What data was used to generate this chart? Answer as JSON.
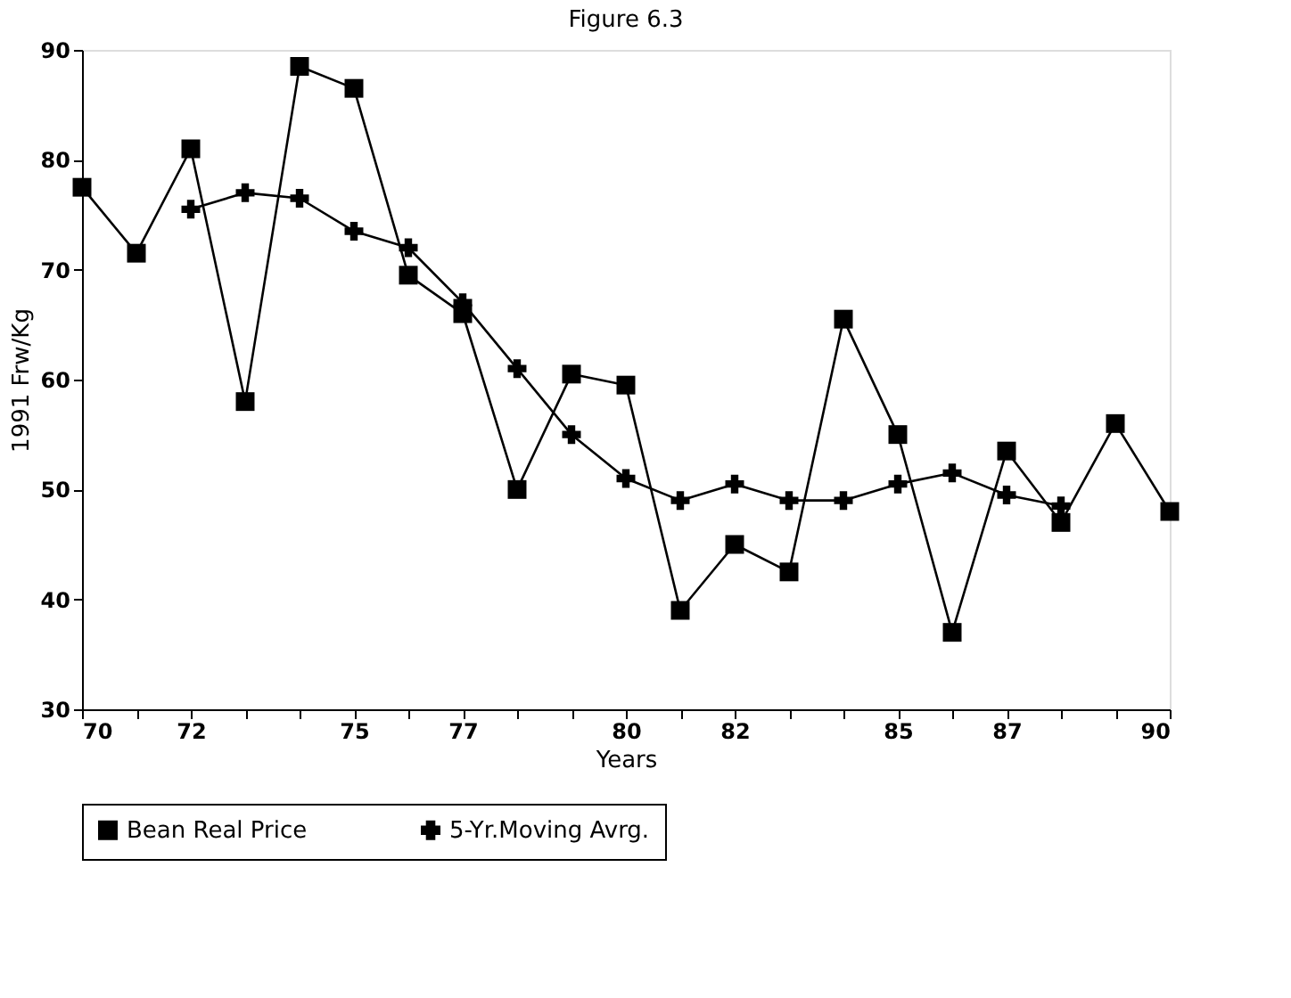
{
  "chart_data": {
    "type": "line",
    "title": "Figure 6.3",
    "xlabel": "Years",
    "ylabel": "1991 Frw/Kg",
    "x": [
      70,
      71,
      72,
      73,
      74,
      75,
      76,
      77,
      78,
      79,
      80,
      81,
      82,
      83,
      84,
      85,
      86,
      87,
      88,
      89,
      90
    ],
    "series": [
      {
        "name": "Bean Real Price",
        "color": "#000000",
        "marker": "square",
        "values": [
          77.5,
          71.5,
          81,
          58,
          88.5,
          86.5,
          69.5,
          66,
          50,
          60.5,
          59.5,
          39,
          45,
          42.5,
          65.5,
          55,
          37,
          53.5,
          47,
          56,
          48
        ]
      },
      {
        "name": "5-Yr.Moving Avrg.",
        "color": "#000000",
        "marker": "cross",
        "values": [
          null,
          null,
          75.5,
          77,
          76.5,
          73.5,
          72,
          67,
          61,
          55,
          51,
          49,
          50.5,
          49,
          49,
          50.5,
          51.5,
          49.5,
          48.5,
          null,
          null
        ]
      }
    ],
    "xlim": [
      70,
      90
    ],
    "xticks": [
      70,
      {
        "value": 71,
        "label": null
      },
      72,
      {
        "value": 73,
        "label": null
      },
      {
        "value": 74,
        "label": null
      },
      75,
      {
        "value": 76,
        "label": null
      },
      77,
      {
        "value": 78,
        "label": null
      },
      {
        "value": 79,
        "label": null
      },
      80,
      {
        "value": 81,
        "label": null
      },
      82,
      {
        "value": 83,
        "label": null
      },
      {
        "value": 84,
        "label": null
      },
      85,
      {
        "value": 86,
        "label": null
      },
      87,
      {
        "value": 88,
        "label": null
      },
      {
        "value": 89,
        "label": null
      },
      90
    ],
    "ylim": [
      30,
      90
    ],
    "yticks": [
      30,
      40,
      50,
      60,
      70,
      80,
      90
    ],
    "grid": false,
    "legend": "bottom",
    "line_style": "solid"
  }
}
